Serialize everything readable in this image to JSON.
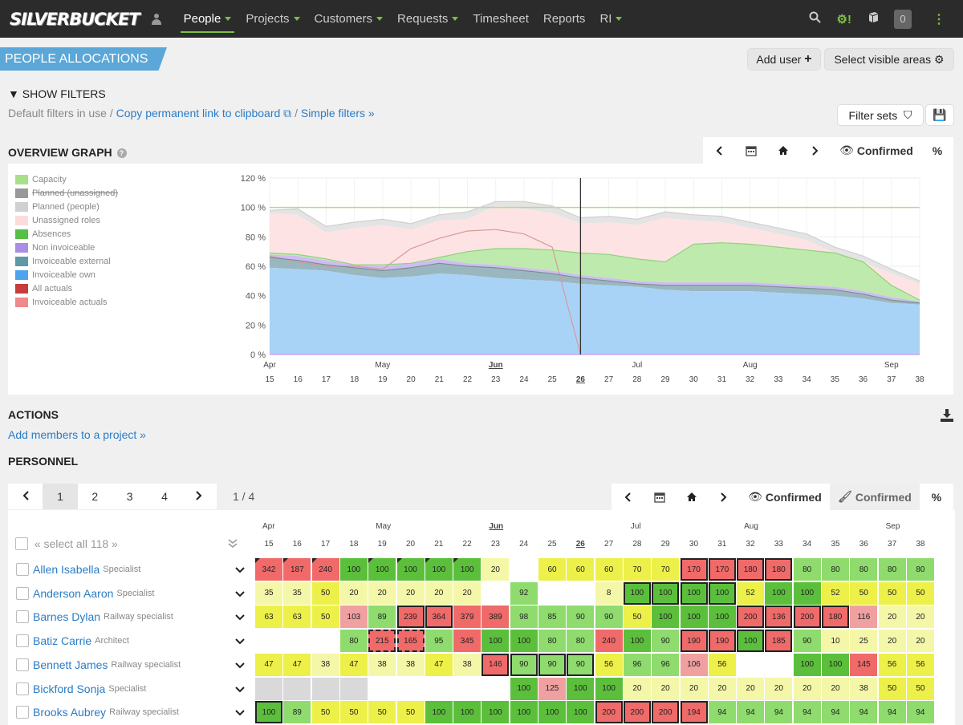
{
  "app": {
    "logo": "SILVERBUCKET"
  },
  "nav": [
    {
      "label": "People",
      "active": true,
      "caret": true
    },
    {
      "label": "Projects",
      "caret": true
    },
    {
      "label": "Customers",
      "caret": true
    },
    {
      "label": "Requests",
      "caret": true
    },
    {
      "label": "Timesheet",
      "caret": false
    },
    {
      "label": "Reports",
      "caret": false
    },
    {
      "label": "RI",
      "caret": true
    }
  ],
  "topright": {
    "badge": "0",
    "settings": "⚙!",
    "icons": [
      "search-icon",
      "gear-alert-icon",
      "book-icon",
      "notification-badge",
      "more-icon"
    ]
  },
  "page": {
    "title": "PEOPLE ALLOCATIONS",
    "add_user": "Add user",
    "select_areas": "Select visible areas"
  },
  "filters": {
    "show": "SHOW FILTERS",
    "default": "Default filters in use /",
    "copy": "Copy permanent link to clipboard",
    "sep": "/",
    "simple": "Simple filters »",
    "filter_sets": "Filter sets"
  },
  "overview": {
    "title": "OVERVIEW GRAPH",
    "mode": "Confirmed",
    "pct": "%",
    "legend": [
      {
        "label": "Capacity",
        "color": "#a6e08a"
      },
      {
        "label": "Planned (unassigned)",
        "color": "#999999",
        "strike": true
      },
      {
        "label": "Planned (people)",
        "color": "#d0d0d0"
      },
      {
        "label": "Unassigned roles",
        "color": "#fbdcdc"
      },
      {
        "label": "Absences",
        "color": "#55c045"
      },
      {
        "label": "Non invoiceable",
        "color": "#a98ee6"
      },
      {
        "label": "Invoiceable external",
        "color": "#5e9aa6"
      },
      {
        "label": "Invoiceable own",
        "color": "#4da3ee"
      },
      {
        "label": "All actuals",
        "color": "#c83c3c"
      },
      {
        "label": "Invoiceable actuals",
        "color": "#f08a8a"
      }
    ],
    "yticks": [
      "120 %",
      "100 %",
      "80 %",
      "60 %",
      "40 %",
      "20 %",
      "0 %"
    ]
  },
  "chart_data": {
    "type": "area",
    "x": [
      "15",
      "16",
      "17",
      "18",
      "19",
      "20",
      "21",
      "22",
      "23",
      "24",
      "25",
      "26",
      "27",
      "28",
      "29",
      "30",
      "31",
      "32",
      "33",
      "34",
      "35",
      "36",
      "37",
      "38"
    ],
    "months": [
      {
        "label": "Apr",
        "at": "15"
      },
      {
        "label": "May",
        "at": "19"
      },
      {
        "label": "Jun",
        "at": "23"
      },
      {
        "label": "Jul",
        "at": "28"
      },
      {
        "label": "Aug",
        "at": "32"
      },
      {
        "label": "Sep",
        "at": "37"
      }
    ],
    "current_week": "26",
    "ylim": [
      0,
      120
    ],
    "series": [
      {
        "name": "Capacity",
        "values": [
          100,
          100,
          100,
          100,
          100,
          100,
          100,
          100,
          100,
          100,
          100,
          100,
          100,
          100,
          100,
          100,
          100,
          100,
          100,
          100,
          100,
          100,
          100,
          100
        ]
      },
      {
        "name": "Invoiceable own",
        "values": [
          59,
          58,
          57,
          54,
          52,
          53,
          55,
          54,
          52,
          51,
          50,
          48,
          47,
          46,
          44,
          43,
          43,
          43,
          42,
          41,
          40,
          38,
          35,
          34
        ]
      },
      {
        "name": "Invoiceable external",
        "values": [
          66,
          64,
          61,
          59,
          57,
          59,
          62,
          60,
          59,
          57,
          55,
          52,
          50,
          48,
          47,
          47,
          47,
          47,
          46,
          45,
          44,
          41,
          37,
          35
        ]
      },
      {
        "name": "Non invoiceable",
        "values": [
          68,
          67,
          64,
          61,
          60,
          62,
          65,
          62,
          61,
          59,
          57,
          54,
          52,
          50,
          49,
          49,
          49,
          49,
          48,
          47,
          46,
          43,
          39,
          36
        ]
      },
      {
        "name": "Absences",
        "values": [
          69,
          68,
          65,
          61,
          61,
          62,
          66,
          70,
          72,
          72,
          71,
          69,
          68,
          65,
          63,
          75,
          76,
          75,
          73,
          71,
          69,
          63,
          47,
          37
        ]
      },
      {
        "name": "Unassigned roles",
        "values": [
          96,
          95,
          83,
          86,
          88,
          85,
          91,
          92,
          101,
          99,
          96,
          89,
          90,
          88,
          93,
          91,
          90,
          86,
          82,
          78,
          69,
          63,
          55,
          48
        ]
      },
      {
        "name": "Planned (people)",
        "values": [
          98,
          99,
          87,
          90,
          92,
          89,
          95,
          97,
          104,
          104,
          101,
          93,
          94,
          92,
          97,
          95,
          94,
          90,
          86,
          82,
          73,
          67,
          58,
          50
        ]
      },
      {
        "name": "Invoiceable actuals",
        "values": [
          67,
          63,
          60,
          60,
          58,
          72,
          79,
          84,
          85,
          82,
          73,
          0,
          null,
          null,
          null,
          null,
          null,
          null,
          null,
          null,
          null,
          null,
          null,
          null
        ]
      }
    ]
  },
  "actions": {
    "title": "ACTIONS",
    "add_members": "Add members to a project »"
  },
  "personnel": {
    "title": "PERSONNEL",
    "pages": [
      "1",
      "2",
      "3",
      "4"
    ],
    "page_count": "1 / 4",
    "mode": "Confirmed",
    "mode2": "Confirmed",
    "pct": "%",
    "select_all": "« select all 118 »",
    "people": [
      {
        "name": "Allen Isabella",
        "role": "Specialist",
        "cells": [
          342,
          187,
          240,
          100,
          100,
          100,
          100,
          100,
          20,
          "",
          60,
          60,
          60,
          70,
          70,
          170,
          170,
          180,
          180,
          80,
          80,
          80,
          80,
          80
        ],
        "bold": [
          15,
          16,
          17,
          18
        ]
      },
      {
        "name": "Anderson Aaron",
        "role": "Specialist",
        "cells": [
          35,
          35,
          50,
          20,
          20,
          20,
          20,
          20,
          "",
          92,
          "",
          "",
          8,
          100,
          100,
          100,
          100,
          52,
          100,
          100,
          52,
          50,
          50,
          50
        ],
        "bold": [
          13,
          14,
          15,
          16
        ]
      },
      {
        "name": "Barnes Dylan",
        "role": "Railway specialist",
        "cells": [
          63,
          63,
          50,
          103,
          89,
          239,
          364,
          379,
          389,
          98,
          85,
          90,
          90,
          50,
          100,
          100,
          100,
          200,
          136,
          200,
          180,
          116,
          20,
          20
        ],
        "bold": [
          5,
          6,
          17,
          18,
          19,
          20
        ]
      },
      {
        "name": "Batiz Carrie",
        "role": "Architect",
        "cells": [
          "",
          "",
          "",
          80,
          215,
          165,
          95,
          345,
          100,
          100,
          80,
          80,
          240,
          100,
          90,
          190,
          190,
          100,
          185,
          90,
          10,
          25,
          20,
          20
        ],
        "bold": [
          15,
          16,
          17,
          18
        ],
        "dashed": [
          4,
          5
        ]
      },
      {
        "name": "Bennett James",
        "role": "Railway specialist",
        "cells": [
          47,
          47,
          38,
          47,
          38,
          38,
          47,
          38,
          146,
          90,
          90,
          90,
          56,
          96,
          96,
          106,
          56,
          "",
          "",
          100,
          100,
          145,
          56,
          56
        ],
        "bold": [
          8,
          9,
          10,
          11
        ]
      },
      {
        "name": "Bickford Sonja",
        "role": "Specialist",
        "cells": [
          "g",
          "g",
          "g",
          "g",
          "",
          "",
          "",
          "",
          "",
          100,
          125,
          100,
          100,
          20,
          20,
          20,
          20,
          20,
          20,
          20,
          20,
          38,
          50,
          50
        ]
      },
      {
        "name": "Brooks Aubrey",
        "role": "Railway specialist",
        "cells": [
          100,
          89,
          50,
          50,
          50,
          50,
          100,
          100,
          100,
          100,
          100,
          100,
          200,
          200,
          200,
          194,
          94,
          94,
          94,
          94,
          94,
          94,
          94,
          94
        ],
        "bold": [
          0,
          12,
          13,
          14,
          15
        ]
      }
    ]
  }
}
